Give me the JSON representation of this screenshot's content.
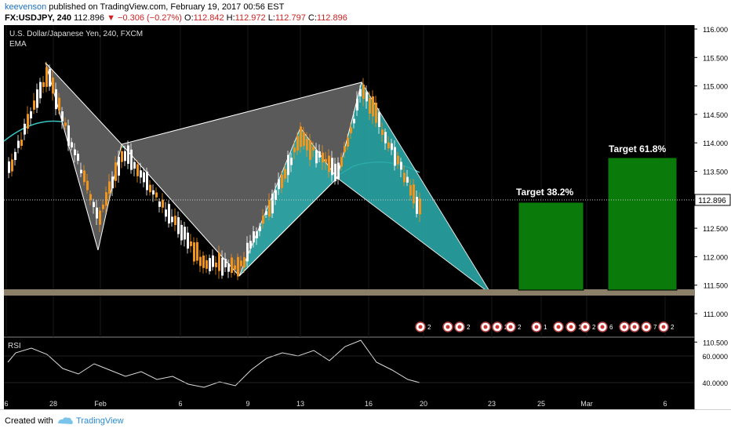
{
  "header": {
    "author": "keevenson",
    "published": "published on TradingView.com, February 19, 2017 00:56 EST",
    "symbol": "FX:USDJPY, 240",
    "last": "112.896",
    "change": "−0.306 (−0.27%)",
    "o_label": "O:",
    "o_value": "112.842",
    "h_label": "H:",
    "h_value": "112.972",
    "l_label": "L:",
    "l_value": "112.797",
    "c_label": "C:",
    "c_value": "112.896"
  },
  "chart": {
    "title": "U.S. Dollar/Japanese Yen, 240, FXCM",
    "indicator": "EMA",
    "last_price_label": "112.896",
    "price_ticks": [
      "116.000",
      "115.500",
      "115.000",
      "114.500",
      "114.000",
      "113.500",
      "113.000",
      "112.500",
      "112.000",
      "111.500",
      "111.000",
      "110.500"
    ],
    "date_ticks": [
      "6",
      "28",
      "Feb",
      "6",
      "9",
      "13",
      "16",
      "20",
      "23",
      "25",
      "Mar",
      "6"
    ],
    "targets": [
      {
        "label": "Target 38.2%",
        "color": "#0a7a0a"
      },
      {
        "label": "Target 61.8%",
        "color": "#0a7a0a"
      }
    ],
    "support_band_color": "#8c8068",
    "pattern_fill_gray": "#5a5a5a",
    "pattern_fill_teal": "#2aa6a6",
    "ema_color": "#3ac4c4",
    "bull_candle": "#ffffff",
    "bear_candle": "#f0941c",
    "event_badges": [
      "2",
      "3",
      "2",
      "1",
      "2",
      "2",
      "1",
      "6",
      "1",
      "2",
      "6",
      "4",
      "2",
      "7",
      "2"
    ],
    "rsi": {
      "label": "RSI",
      "ticks": [
        "60.0000",
        "40.0000"
      ]
    }
  },
  "footer": {
    "created_with": "Created with",
    "brand": "TradingView"
  }
}
